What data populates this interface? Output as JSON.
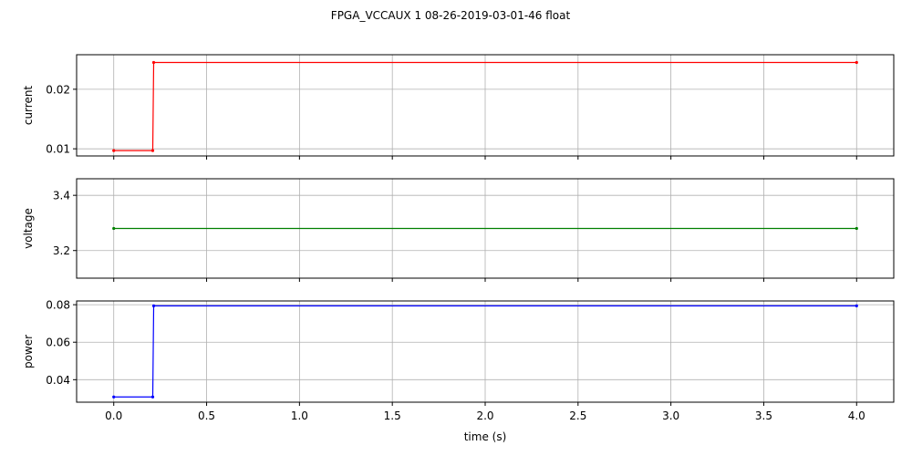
{
  "chart_data": {
    "type": "line",
    "title": "FPGA_VCCAUX   1   08-26-2019-03-01-46   float",
    "xlabel": "time (s)",
    "xlim": [
      -0.2,
      4.2
    ],
    "xticks": [
      0.0,
      0.5,
      1.0,
      1.5,
      2.0,
      2.5,
      3.0,
      3.5,
      4.0
    ],
    "xtick_labels": [
      "0.0",
      "0.5",
      "1.0",
      "1.5",
      "2.0",
      "2.5",
      "3.0",
      "3.5",
      "4.0"
    ],
    "grid": true,
    "panels": [
      {
        "ylabel": "current",
        "color": "#ff0000",
        "ylim": [
          0.0088,
          0.0258
        ],
        "yticks": [
          0.01,
          0.02
        ],
        "ytick_labels": [
          "0.01",
          "0.02"
        ],
        "x": [
          0.0,
          0.21,
          0.215,
          4.0
        ],
        "values": [
          0.0097,
          0.0097,
          0.0245,
          0.0245
        ]
      },
      {
        "ylabel": "voltage",
        "color": "#008000",
        "ylim": [
          3.1,
          3.46
        ],
        "yticks": [
          3.2,
          3.4
        ],
        "ytick_labels": [
          "3.2",
          "3.4"
        ],
        "x": [
          0.0,
          4.0
        ],
        "values": [
          3.28,
          3.28
        ]
      },
      {
        "ylabel": "power",
        "color": "#0000ff",
        "ylim": [
          0.028,
          0.082
        ],
        "yticks": [
          0.04,
          0.06,
          0.08
        ],
        "ytick_labels": [
          "0.04",
          "0.06",
          "0.08"
        ],
        "x": [
          0.0,
          0.21,
          0.215,
          4.0
        ],
        "values": [
          0.0308,
          0.0308,
          0.0794,
          0.0794
        ]
      }
    ]
  }
}
